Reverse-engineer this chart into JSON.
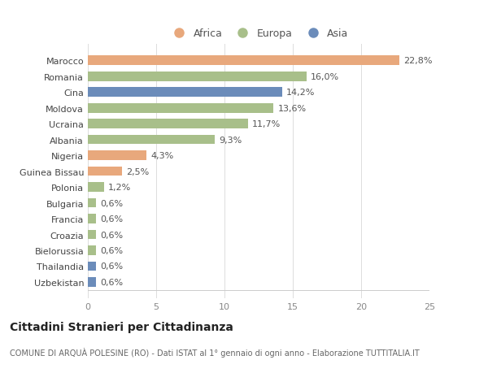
{
  "categories": [
    "Uzbekistan",
    "Thailandia",
    "Bielorussia",
    "Croazia",
    "Francia",
    "Bulgaria",
    "Polonia",
    "Guinea Bissau",
    "Nigeria",
    "Albania",
    "Ucraina",
    "Moldova",
    "Cina",
    "Romania",
    "Marocco"
  ],
  "values": [
    0.6,
    0.6,
    0.6,
    0.6,
    0.6,
    0.6,
    1.2,
    2.5,
    4.3,
    9.3,
    11.7,
    13.6,
    14.2,
    16.0,
    22.8
  ],
  "labels": [
    "0,6%",
    "0,6%",
    "0,6%",
    "0,6%",
    "0,6%",
    "0,6%",
    "1,2%",
    "2,5%",
    "4,3%",
    "9,3%",
    "11,7%",
    "13,6%",
    "14,2%",
    "16,0%",
    "22,8%"
  ],
  "colors": [
    "#6b8cba",
    "#6b8cba",
    "#a8bf8a",
    "#a8bf8a",
    "#a8bf8a",
    "#a8bf8a",
    "#a8bf8a",
    "#e8a87c",
    "#e8a87c",
    "#a8bf8a",
    "#a8bf8a",
    "#a8bf8a",
    "#6b8cba",
    "#a8bf8a",
    "#e8a87c"
  ],
  "legend": [
    {
      "label": "Africa",
      "color": "#e8a87c"
    },
    {
      "label": "Europa",
      "color": "#a8bf8a"
    },
    {
      "label": "Asia",
      "color": "#6b8cba"
    }
  ],
  "xlim": [
    0,
    25
  ],
  "xticks": [
    0,
    5,
    10,
    15,
    20,
    25
  ],
  "title": "Cittadini Stranieri per Cittadinanza",
  "subtitle": "COMUNE DI ARQUÀ POLESINE (RO) - Dati ISTAT al 1° gennaio di ogni anno - Elaborazione TUTTITALIA.IT",
  "background_color": "#ffffff",
  "bar_height": 0.6,
  "label_fontsize": 8,
  "tick_fontsize": 8,
  "title_fontsize": 10,
  "subtitle_fontsize": 7
}
